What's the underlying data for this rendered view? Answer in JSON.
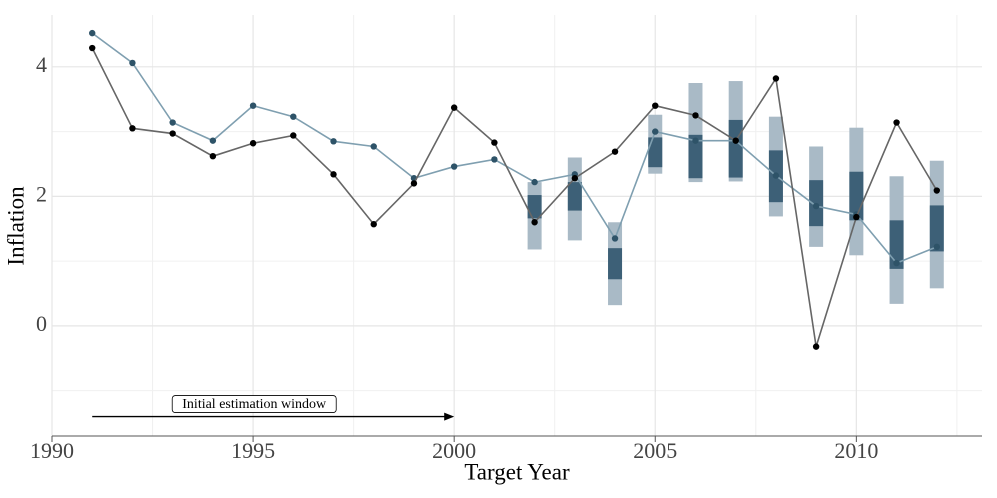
{
  "chart_data": {
    "type": "line",
    "x_label": "Target Year",
    "y_label": "Inflation",
    "x": [
      1991,
      1992,
      1993,
      1994,
      1995,
      1996,
      1997,
      1998,
      1999,
      2000,
      2001,
      2002,
      2003,
      2004,
      2005,
      2006,
      2007,
      2008,
      2009,
      2010,
      2011,
      2012
    ],
    "series": [
      {
        "color": "#7f9fb0",
        "marker_color": "#2e5368",
        "values": [
          4.52,
          4.06,
          3.14,
          2.86,
          3.4,
          3.23,
          2.85,
          2.77,
          2.28,
          2.46,
          2.57,
          2.22,
          2.34,
          1.35,
          3.0,
          2.86,
          2.86,
          2.32,
          1.85,
          1.72,
          0.97,
          1.22
        ]
      },
      {
        "color": "#666666",
        "marker_color": "#000000",
        "values": [
          4.29,
          3.05,
          2.97,
          2.62,
          2.82,
          2.94,
          2.34,
          1.57,
          2.2,
          3.37,
          2.83,
          1.6,
          2.28,
          2.69,
          3.4,
          3.25,
          2.86,
          3.82,
          -0.32,
          1.68,
          3.14,
          2.09
        ]
      }
    ],
    "intervals": {
      "x": [
        2002,
        2003,
        2004,
        2005,
        2006,
        2007,
        2008,
        2009,
        2010,
        2011,
        2012
      ],
      "outer_color": "#a9bac6",
      "inner_color": "#3d6077",
      "outer_low": [
        1.18,
        1.32,
        0.32,
        2.35,
        2.22,
        2.23,
        1.69,
        1.22,
        1.09,
        0.34,
        0.58
      ],
      "outer_high": [
        2.22,
        2.6,
        1.6,
        3.26,
        3.75,
        3.78,
        3.23,
        2.77,
        3.06,
        2.31,
        2.55
      ],
      "inner_low": [
        1.66,
        1.78,
        0.72,
        2.45,
        2.28,
        2.29,
        1.91,
        1.54,
        1.63,
        0.88,
        1.15
      ],
      "inner_high": [
        2.02,
        2.22,
        1.2,
        2.91,
        2.95,
        3.18,
        2.71,
        2.25,
        2.38,
        1.63,
        1.86
      ]
    },
    "annotation": {
      "text": "Initial estimation window",
      "x": [
        1991,
        2000
      ],
      "y": -1.4
    },
    "xlim": [
      1990,
      2013
    ],
    "ylim": [
      -1.7,
      4.8
    ],
    "xticks": [
      1990,
      1995,
      2000,
      2005,
      2010
    ],
    "yticks": [
      0,
      2,
      4
    ],
    "minor_xticks": [
      1992.5,
      1997.5,
      2002.5,
      2007.5,
      2012.5
    ],
    "minor_yticks": [
      -1,
      1,
      3
    ],
    "grid": true
  }
}
